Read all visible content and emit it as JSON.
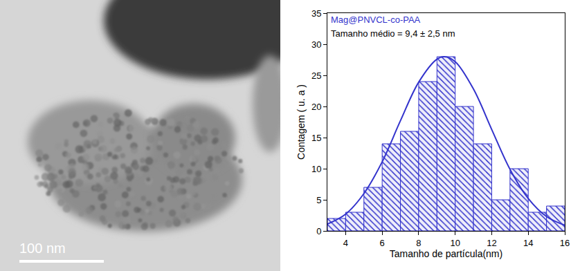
{
  "micrograph": {
    "scale_bar": "100 nm"
  },
  "chart_data": {
    "type": "histogram",
    "annotations": [
      "Mag@PNVCL-co-PAA",
      "Tamanho médio = 9,4 ± 2,5 nm"
    ],
    "x_label": "Tamanho de partícula(nm)",
    "y_label": "Contagem ( u. a )",
    "bins": [
      3,
      4,
      5,
      6,
      7,
      8,
      9,
      10,
      11,
      12,
      13,
      14,
      15,
      16
    ],
    "counts": [
      2,
      3,
      7,
      14,
      16,
      24,
      28,
      20,
      14,
      5,
      10,
      3,
      4
    ],
    "color": "#3333cc",
    "fit": {
      "type": "line",
      "x": [
        3,
        4,
        5,
        6,
        7,
        8,
        9,
        9.4,
        10,
        11,
        12,
        13,
        14,
        15,
        16
      ],
      "values": [
        1.1,
        2.7,
        6.0,
        11.1,
        17.7,
        23.9,
        27.6,
        28,
        27.2,
        22.8,
        16.3,
        9.9,
        5.2,
        2.3,
        0.9
      ]
    },
    "xlim": [
      3,
      16
    ],
    "xticks": [
      4,
      6,
      8,
      10,
      12,
      14,
      16
    ],
    "ylim": [
      0,
      35
    ],
    "yticks": [
      0,
      5,
      10,
      15,
      20,
      25,
      30,
      35
    ],
    "grid": false
  }
}
